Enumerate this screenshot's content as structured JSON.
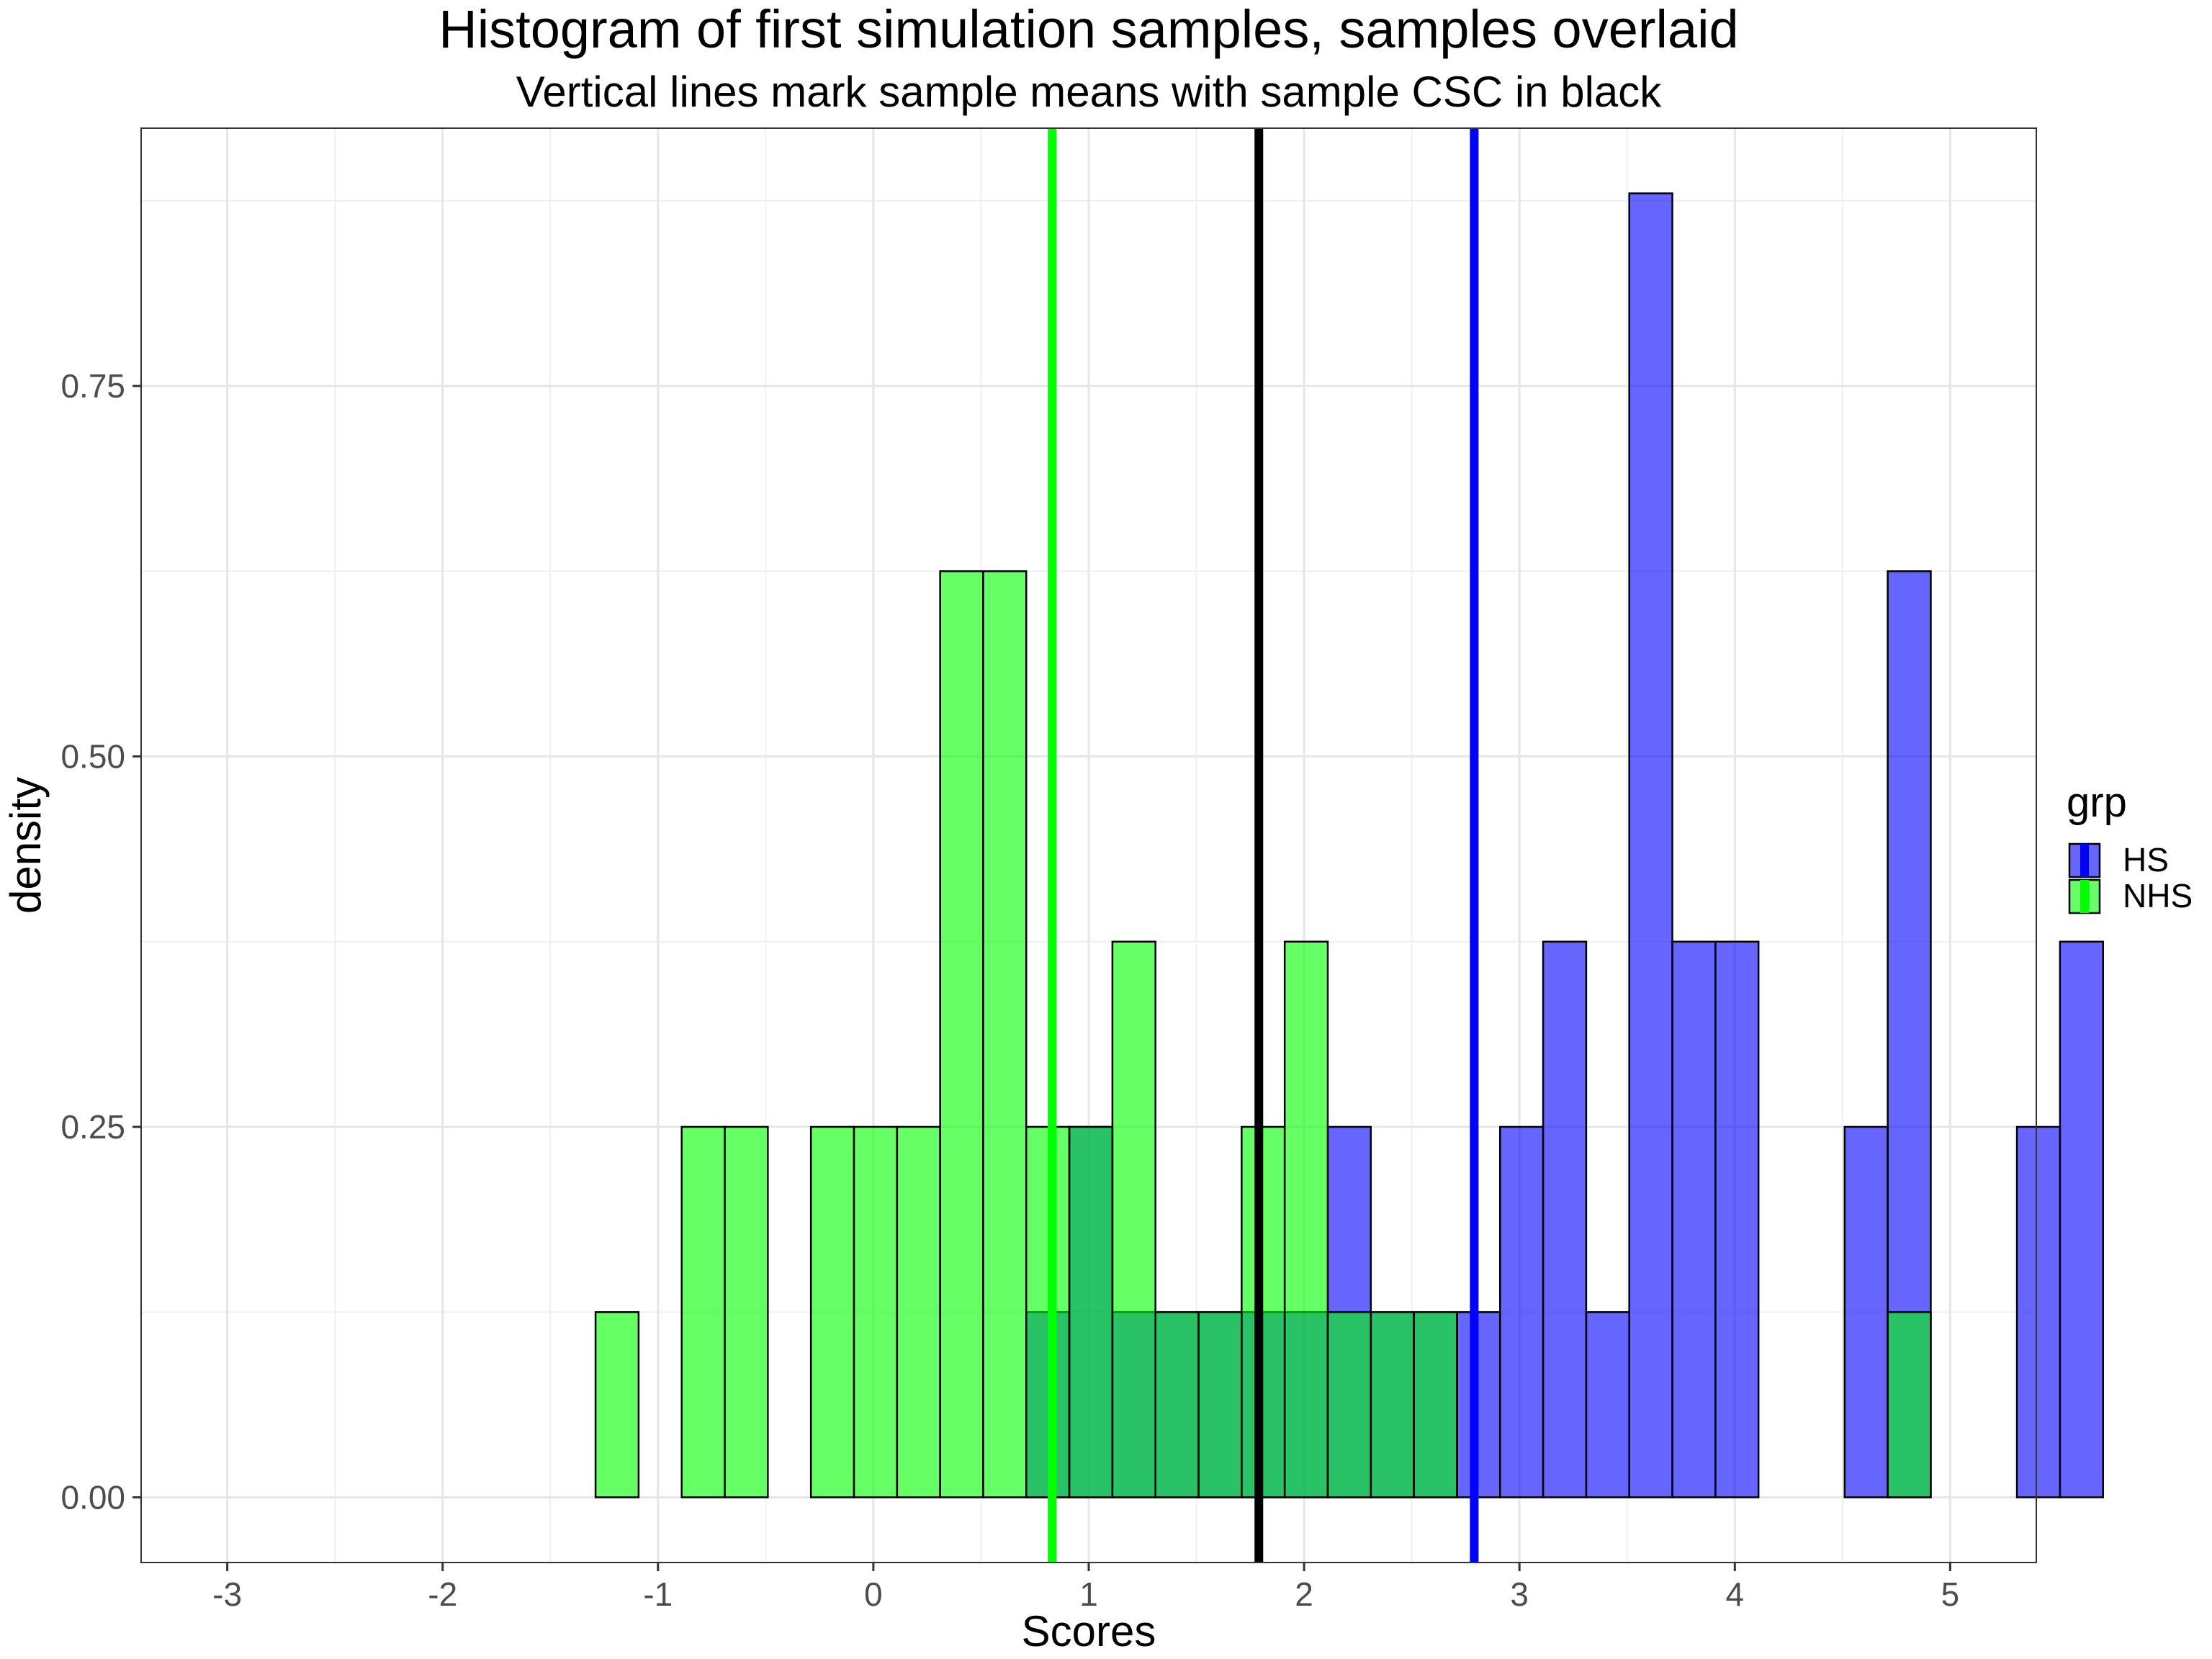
{
  "chart_data": {
    "type": "bar",
    "title": "Histogram of first simulation samples, samples overlaid",
    "subtitle": "Vertical lines mark sample means with sample CSC in black",
    "xlabel": "Scores",
    "ylabel": "density",
    "xlim": [
      -3.4,
      5.4
    ],
    "ylim": [
      -0.044,
      0.924
    ],
    "x_ticks": [
      -3,
      -2,
      -1,
      0,
      1,
      2,
      3,
      4,
      5
    ],
    "y_ticks": [
      0,
      0.25,
      0.5,
      0.75
    ],
    "y_tick_labels": [
      "0.00",
      "0.25",
      "0.50",
      "0.75"
    ],
    "grid": true,
    "bin_width": 0.2,
    "bin_start": -1.29,
    "legend": {
      "title": "grp",
      "position": "right",
      "entries": [
        {
          "label": "HS",
          "color": "#0000FF"
        },
        {
          "label": "NHS",
          "color": "#00FF00"
        }
      ]
    },
    "series": [
      {
        "name": "HS",
        "color": "#0000FF",
        "values": [
          0,
          0,
          0,
          0,
          0,
          0,
          0,
          0,
          0,
          0,
          0.125,
          0.25,
          0.125,
          0.125,
          0.125,
          0.125,
          0.125,
          0.25,
          0.125,
          0.125,
          0.125,
          0.25,
          0.375,
          0.125,
          0.88,
          0.375,
          0.375,
          0,
          0,
          0.25,
          0.625,
          0,
          0,
          0.25,
          0.375
        ]
      },
      {
        "name": "NHS",
        "color": "#00FF00",
        "values": [
          0.125,
          0,
          0.25,
          0.25,
          0,
          0.25,
          0.25,
          0.25,
          0.625,
          0.625,
          0.25,
          0.25,
          0.375,
          0.125,
          0.125,
          0.25,
          0.375,
          0.125,
          0.125,
          0.125,
          0,
          0,
          0,
          0,
          0,
          0,
          0,
          0,
          0,
          0,
          0.125,
          0,
          0,
          0,
          0
        ]
      }
    ],
    "vlines": [
      {
        "name": "NHS mean",
        "x": 0.83,
        "color": "#00FF00"
      },
      {
        "name": "CSC",
        "x": 1.79,
        "color": "#000000"
      },
      {
        "name": "HS mean",
        "x": 2.79,
        "color": "#0000FF"
      }
    ]
  }
}
